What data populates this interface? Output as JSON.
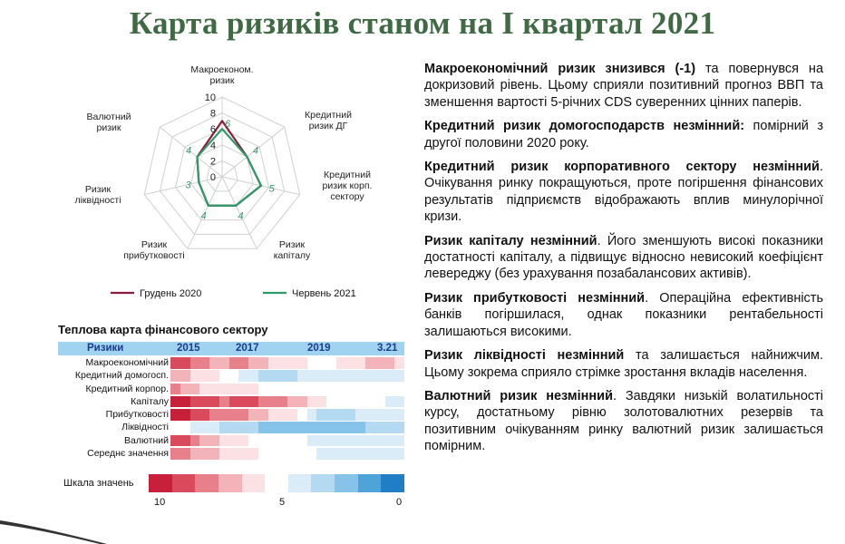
{
  "slide": {
    "title": "Карта ризиків станом на І квартал 2021"
  },
  "radar": {
    "axes": [
      {
        "label": [
          "Макроеконом.",
          "ризик"
        ],
        "jun_label": "6"
      },
      {
        "label": [
          "Кредитний",
          "ризик ДГ"
        ],
        "jun_label": "4"
      },
      {
        "label": [
          "Кредитний",
          "ризик корп.",
          "сектору"
        ],
        "jun_label": "5"
      },
      {
        "label": [
          "Ризик",
          "капіталу"
        ],
        "jun_label": "4"
      },
      {
        "label": [
          "Ризик",
          "прибутковості"
        ],
        "jun_label": "4"
      },
      {
        "label": [
          "Ризик",
          "ліквідності"
        ],
        "jun_label": "3"
      },
      {
        "label": [
          "Валютний",
          "ризик"
        ],
        "jun_label": "4"
      }
    ],
    "ticks": [
      "10",
      "8",
      "6",
      "4",
      "2",
      "0"
    ],
    "series": [
      {
        "name": "Грудень 2020",
        "color": "#8b1c3b",
        "values": [
          7,
          4,
          5,
          4,
          4,
          3,
          4
        ]
      },
      {
        "name": "Червень 2021",
        "color": "#2e9a6a",
        "values": [
          6,
          4,
          5,
          4,
          4,
          3,
          4
        ]
      }
    ],
    "max": 10
  },
  "heatmap": {
    "title": "Теплова карта фінансового сектору",
    "header": {
      "label": "Ризики",
      "years": [
        "2015",
        "2017",
        "2019",
        "3.21"
      ]
    },
    "rows": [
      {
        "label": "Макроекономічний",
        "values": [
          9,
          9,
          8,
          8,
          7,
          7,
          8,
          8,
          7,
          7,
          6,
          6,
          6,
          6,
          5,
          5,
          5,
          6,
          6,
          6,
          7,
          7,
          7,
          6
        ]
      },
      {
        "label": "Кредитний домогосп.",
        "values": [
          7,
          7,
          6,
          6,
          6,
          5,
          5,
          4,
          4,
          3,
          3,
          3,
          3,
          4,
          4,
          4,
          4,
          4,
          4,
          4,
          4,
          4,
          4,
          4
        ]
      },
      {
        "label": "Кредитний корпор.",
        "values": [
          8,
          7,
          7,
          6,
          6,
          6,
          6,
          6,
          6,
          5,
          5,
          5,
          5,
          5,
          5,
          5,
          5,
          5,
          5,
          5,
          5,
          5,
          5,
          5
        ]
      },
      {
        "label": "Капіталу",
        "values": [
          10,
          10,
          9,
          9,
          9,
          8,
          9,
          9,
          9,
          8,
          8,
          8,
          7,
          7,
          6,
          6,
          5,
          5,
          5,
          5,
          5,
          5,
          4,
          4
        ]
      },
      {
        "label": "Прибутковості",
        "values": [
          10,
          10,
          9,
          9,
          8,
          8,
          8,
          8,
          7,
          7,
          6,
          6,
          6,
          5,
          4,
          3,
          3,
          3,
          3,
          4,
          4,
          4,
          4,
          4
        ]
      },
      {
        "label": "Ліквідності",
        "values": [
          5,
          5,
          4,
          4,
          4,
          3,
          3,
          3,
          3,
          2,
          2,
          2,
          2,
          2,
          2,
          2,
          2,
          2,
          2,
          2,
          3,
          3,
          3,
          3
        ]
      },
      {
        "label": "Валютний",
        "values": [
          9,
          9,
          8,
          7,
          7,
          6,
          6,
          6,
          5,
          5,
          5,
          5,
          5,
          5,
          4,
          4,
          4,
          4,
          4,
          4,
          4,
          4,
          4,
          4
        ]
      },
      {
        "label": "Середнє значення",
        "values": [
          8,
          8,
          7,
          7,
          7,
          6,
          6,
          6,
          6,
          5,
          5,
          5,
          5,
          5,
          5,
          4,
          4,
          4,
          4,
          4,
          4,
          4,
          4,
          4
        ]
      }
    ],
    "scale_label": "Шкала значень",
    "scale_ticks": [
      "10",
      "5",
      "0"
    ]
  },
  "commentary": [
    {
      "bold": "Макроекономічний ризик знизився (-1)",
      "text": " та повернувся на докризовий рівень. Цьому сприяли позитивний прогноз ВВП та зменшення вартості 5-річних CDS суверенних цінних паперів."
    },
    {
      "bold": "Кредитний ризик домогосподарств незмінний:",
      "text": " помірний з другої половини 2020 року."
    },
    {
      "bold": "Кредитний ризик корпоративного сектору незмінний",
      "text": ". Очікування ринку покращуються, проте погіршення фінансових результатів підприємств відображають вплив минулорічної кризи."
    },
    {
      "bold": "Ризик капіталу незмінний",
      "text": ". Його зменшують високі показники достатності капіталу, а підвищує відносно невисокий коефіцієнт левереджу (без урахування позабалансових активів)."
    },
    {
      "bold": "Ризик прибутковості незмінний",
      "text": ". Операційна ефективність банків погіршилася, однак показники рентабельності залишаються високими."
    },
    {
      "bold": "Ризик ліквідності незмінний",
      "text": " та залишається найнижчим. Цьому зокрема сприяло стрімке зростання вкладів населення."
    },
    {
      "bold": "Валютний ризик незмінний",
      "text": ". Завдяки низькій волатильності курсу, достатньому рівню золотовалютних резервів та позитивним очікуванням ринку валютний ризик залишається помірним."
    }
  ],
  "colors": {
    "title": "#3f6a44",
    "heat_scale": [
      "#c8203a",
      "#d94a5c",
      "#e8808c",
      "#f2b3b9",
      "#fbe1e3",
      "#ffffff",
      "#d9ecf8",
      "#b3daf1",
      "#86c3e8",
      "#4ea3d8",
      "#1f7fc4"
    ]
  }
}
